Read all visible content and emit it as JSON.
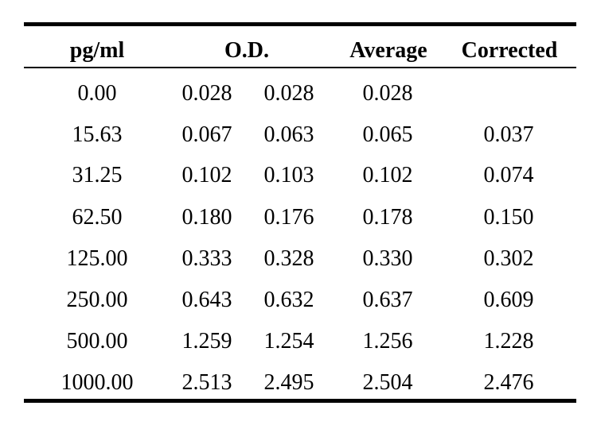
{
  "table": {
    "headers": {
      "concentration": "pg/ml",
      "od": "O.D.",
      "average": "Average",
      "corrected": "Corrected"
    },
    "rows": [
      {
        "conc": "0.00",
        "od1": "0.028",
        "od2": "0.028",
        "avg": "0.028",
        "cor": ""
      },
      {
        "conc": "15.63",
        "od1": "0.067",
        "od2": "0.063",
        "avg": "0.065",
        "cor": "0.037"
      },
      {
        "conc": "31.25",
        "od1": "0.102",
        "od2": "0.103",
        "avg": "0.102",
        "cor": "0.074"
      },
      {
        "conc": "62.50",
        "od1": "0.180",
        "od2": "0.176",
        "avg": "0.178",
        "cor": "0.150"
      },
      {
        "conc": "125.00",
        "od1": "0.333",
        "od2": "0.328",
        "avg": "0.330",
        "cor": "0.302"
      },
      {
        "conc": "250.00",
        "od1": "0.643",
        "od2": "0.632",
        "avg": "0.637",
        "cor": "0.609"
      },
      {
        "conc": "500.00",
        "od1": "1.259",
        "od2": "1.254",
        "avg": "1.256",
        "cor": "1.228"
      },
      {
        "conc": "1000.00",
        "od1": "2.513",
        "od2": "2.495",
        "avg": "2.504",
        "cor": "2.476"
      }
    ]
  }
}
